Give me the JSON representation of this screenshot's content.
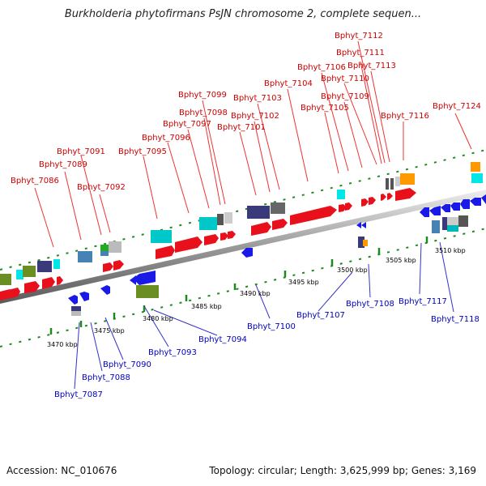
{
  "title": "Burkholderia phytofirmans PsJN chromosome 2, complete sequen...",
  "accession": "Accession: NC_010676",
  "summary": "Topology: circular; Length: 3,625,999 bp; Genes: 3,169",
  "kbp_labels": [
    "3470 kbp",
    "3475 kbp",
    "3480 kbp",
    "3485 kbp",
    "3490 kbp",
    "3495 kbp",
    "3500 kbp",
    "3505 kbp",
    "3510 kbp"
  ],
  "top_genes": [
    "Bphyt_7086",
    "Bphyt_7089",
    "Bphyt_7091",
    "Bphyt_7092",
    "Bphyt_7095",
    "Bphyt_7096",
    "Bphyt_7097",
    "Bphyt_7098",
    "Bphyt_7099",
    "Bphyt_7101",
    "Bphyt_7102",
    "Bphyt_7103",
    "Bphyt_7104",
    "Bphyt_7105",
    "Bphyt_7106",
    "Bphyt_7109",
    "Bphyt_7110",
    "Bphyt_7111",
    "Bphyt_7112",
    "Bphyt_7113",
    "Bphyt_7116",
    "Bphyt_7124"
  ],
  "bottom_genes": [
    "Bphyt_7087",
    "Bphyt_7088",
    "Bphyt_7090",
    "Bphyt_7093",
    "Bphyt_7094",
    "Bphyt_7100",
    "Bphyt_7107",
    "Bphyt_7108",
    "Bphyt_7117",
    "Bphyt_7118"
  ],
  "colors": {
    "forward": "#e8111b",
    "reverse": "#1a1ae6",
    "backbone": "#888888",
    "ticks": "#1e8a1e",
    "top_label": "#cc0000",
    "bottom_label": "#0000bb"
  }
}
